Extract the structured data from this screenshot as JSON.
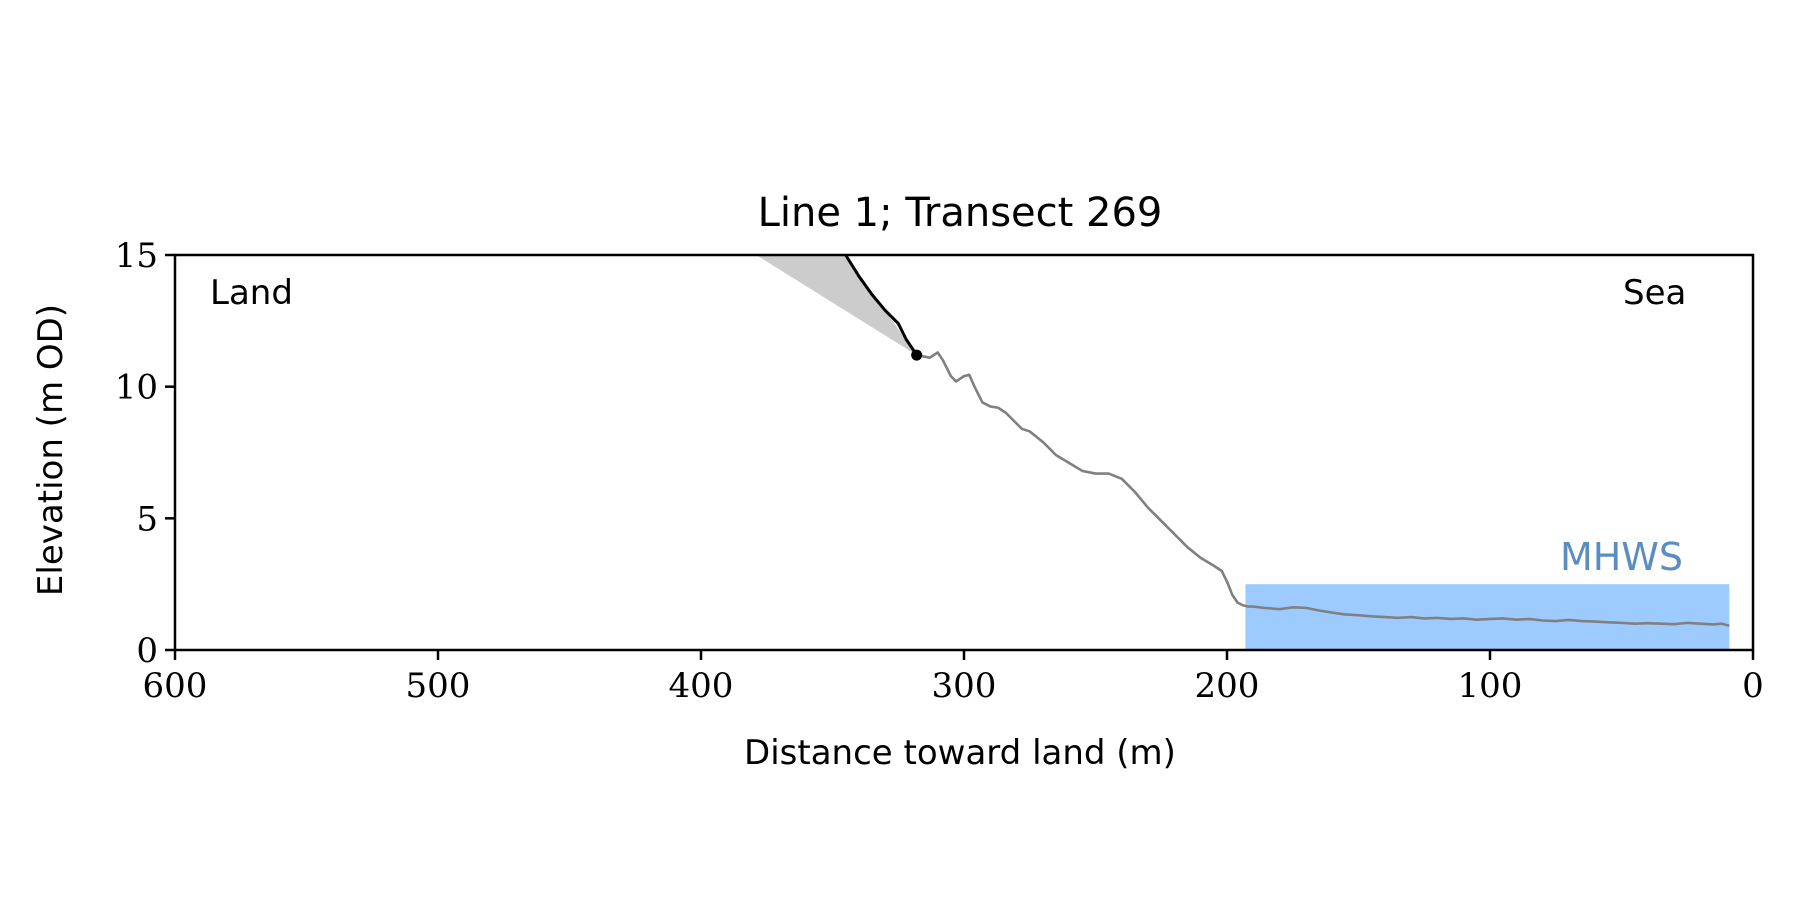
{
  "chart_data": {
    "type": "line",
    "title": "Line 1; Transect 269",
    "xlabel": "Distance toward land (m)",
    "ylabel": "Elevation (m OD)",
    "xlim": [
      600,
      0
    ],
    "ylim": [
      0,
      15
    ],
    "x_ticks": [
      600,
      500,
      400,
      300,
      200,
      100,
      0
    ],
    "y_ticks": [
      0,
      5,
      10,
      15
    ],
    "grid": false,
    "region_labels": {
      "left": "Land",
      "right": "Sea"
    },
    "mhws": {
      "label": "MHWS",
      "level": 2.5,
      "x_start": 193,
      "x_end": 9
    },
    "cliff_top_point": {
      "x": 318,
      "y": 11.2
    },
    "cliff_line": {
      "x": [
        345,
        340,
        335,
        330,
        325,
        322,
        318
      ],
      "y": [
        15,
        14.2,
        13.5,
        12.9,
        12.4,
        11.8,
        11.2
      ]
    },
    "shaded_triangle": {
      "x": [
        379,
        345,
        318
      ],
      "y": [
        15,
        15,
        11.2
      ]
    },
    "profile": {
      "x": [
        318,
        313,
        310,
        308,
        305,
        303,
        300,
        298,
        296,
        293,
        290,
        287,
        284,
        281,
        278,
        275,
        270,
        265,
        260,
        255,
        250,
        245,
        240,
        235,
        230,
        225,
        220,
        215,
        210,
        205,
        202,
        200,
        198,
        196,
        194,
        192,
        190,
        186,
        180,
        175,
        170,
        165,
        160,
        155,
        150,
        145,
        140,
        135,
        130,
        125,
        120,
        115,
        110,
        105,
        100,
        95,
        90,
        85,
        80,
        75,
        70,
        65,
        60,
        55,
        50,
        45,
        40,
        35,
        30,
        25,
        20,
        15,
        12,
        9
      ],
      "y": [
        11.2,
        11.1,
        11.3,
        11.0,
        10.4,
        10.2,
        10.4,
        10.45,
        10.0,
        9.4,
        9.25,
        9.2,
        9.0,
        8.7,
        8.4,
        8.3,
        7.9,
        7.4,
        7.1,
        6.8,
        6.7,
        6.7,
        6.5,
        6.0,
        5.4,
        4.9,
        4.4,
        3.9,
        3.5,
        3.2,
        3.0,
        2.6,
        2.1,
        1.8,
        1.7,
        1.65,
        1.65,
        1.6,
        1.55,
        1.62,
        1.6,
        1.5,
        1.42,
        1.35,
        1.32,
        1.28,
        1.25,
        1.22,
        1.25,
        1.2,
        1.22,
        1.18,
        1.2,
        1.15,
        1.18,
        1.2,
        1.15,
        1.18,
        1.12,
        1.1,
        1.14,
        1.1,
        1.08,
        1.05,
        1.03,
        1.0,
        1.02,
        1.0,
        0.98,
        1.03,
        1.0,
        0.97,
        1.0,
        0.92
      ]
    },
    "colors": {
      "profile": "#808080",
      "cliff": "#000000",
      "shade": "#cccccc",
      "mhws_fill": "#9ecbff",
      "mhws_text": "#5b8cc2"
    }
  }
}
